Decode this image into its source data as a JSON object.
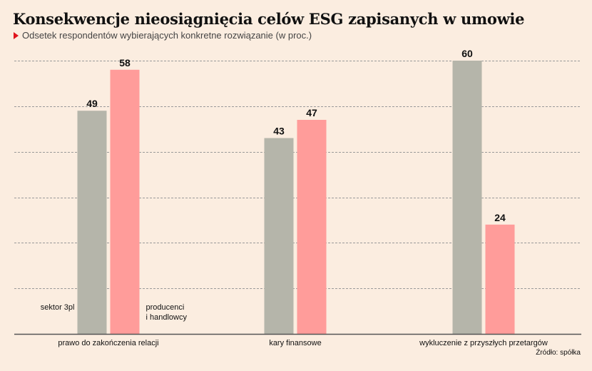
{
  "header": {
    "title": "Konsekwencje nieosiągnięcia celów ESG zapisanych w umowie",
    "subtitle": "Odsetek respondentów wybierających konkretne rozwiązanie (w proc.)"
  },
  "source": "Źródło: spółka",
  "colors": {
    "background": "#fbede0",
    "series_1": "#b5b5aa",
    "series_2": "#ff9c9a",
    "marker": "#e0141c"
  },
  "chart_data": {
    "type": "bar",
    "categories": [
      "prawo do zakończenia relacji",
      "kary finansowe",
      "wykluczenie z przyszłych przetargów"
    ],
    "series": [
      {
        "name": "sektor 3pl",
        "values": [
          49,
          43,
          60
        ]
      },
      {
        "name": "producenci\ni handlowcy",
        "values": [
          58,
          47,
          24
        ]
      }
    ],
    "ylim": [
      0,
      60
    ],
    "grid": true,
    "gridline_values": [
      10,
      20,
      30,
      40,
      50
    ],
    "legend_placement": "bottom-inside",
    "data_labels": true
  }
}
